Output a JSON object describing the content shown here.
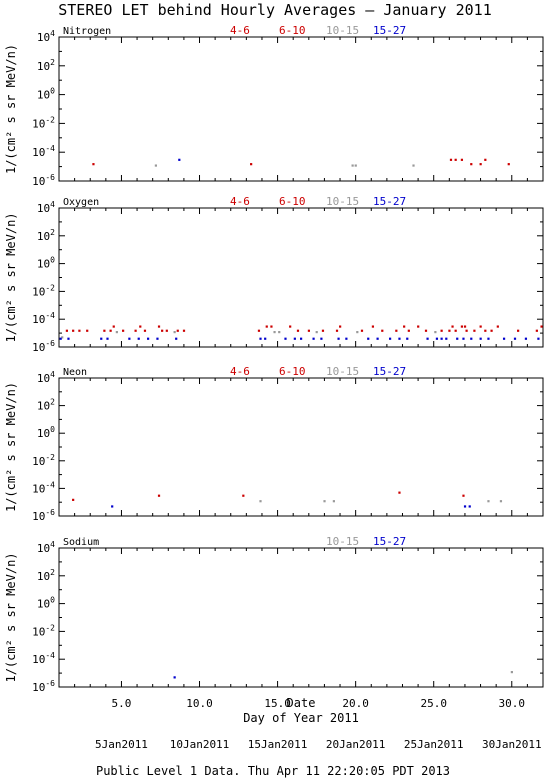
{
  "title": "STEREO LET behind Hourly Averages – January 2011",
  "footer": "Public Level 1 Data. Thu Apr 11 22:20:05 PDT 2013",
  "legend_colors": {
    "4-6": "#cc0000",
    "6-10": "#cc0000",
    "10-15": "#999999",
    "15-27": "#0000cc"
  },
  "chart_data": [
    {
      "type": "scatter",
      "label": "Nitrogen",
      "ylabel": "1/(cm² s sr MeV/n)",
      "xlim": [
        1,
        32
      ],
      "ylog": true,
      "ylim": [
        1e-06,
        10000.0
      ],
      "legend": [
        "4-6",
        "6-10",
        "10-15",
        "15-27"
      ],
      "series": [
        {
          "name": "4-6",
          "color": "#cc0000",
          "points": [
            [
              3.2,
              1.5e-05
            ],
            [
              13.3,
              1.5e-05
            ],
            [
              26.8,
              3e-05
            ],
            [
              27.4,
              1.5e-05
            ],
            [
              28.0,
              1.5e-05
            ],
            [
              29.8,
              1.5e-05
            ]
          ]
        },
        {
          "name": "6-10",
          "color": "#cc0000",
          "points": [
            [
              26.1,
              3e-05
            ],
            [
              26.4,
              3e-05
            ],
            [
              28.3,
              3e-05
            ]
          ]
        },
        {
          "name": "10-15",
          "color": "#999999",
          "points": [
            [
              7.2,
              1.2e-05
            ],
            [
              19.8,
              1.2e-05
            ],
            [
              20.0,
              1.2e-05
            ],
            [
              23.7,
              1.2e-05
            ]
          ]
        },
        {
          "name": "15-27",
          "color": "#0000cc",
          "points": [
            [
              8.7,
              3e-05
            ]
          ]
        }
      ]
    },
    {
      "type": "scatter",
      "label": "Oxygen",
      "ylabel": "1/(cm² s sr MeV/n)",
      "xlim": [
        1,
        32
      ],
      "ylog": true,
      "ylim": [
        1e-06,
        10000.0
      ],
      "legend": [
        "4-6",
        "6-10",
        "10-15",
        "15-27"
      ],
      "series": [
        {
          "name": "4-6",
          "color": "#cc0000",
          "points": [
            [
              1.5,
              1.5e-05
            ],
            [
              1.9,
              1.5e-05
            ],
            [
              2.3,
              1.5e-05
            ],
            [
              2.8,
              1.5e-05
            ],
            [
              3.9,
              1.5e-05
            ],
            [
              4.3,
              1.5e-05
            ],
            [
              5.1,
              1.5e-05
            ],
            [
              5.9,
              1.5e-05
            ],
            [
              6.5,
              1.5e-05
            ],
            [
              7.6,
              1.5e-05
            ],
            [
              7.9,
              1.5e-05
            ],
            [
              8.6,
              1.5e-05
            ],
            [
              9.0,
              1.5e-05
            ],
            [
              13.8,
              1.5e-05
            ],
            [
              16.3,
              1.5e-05
            ],
            [
              17.0,
              1.5e-05
            ],
            [
              17.9,
              1.5e-05
            ],
            [
              18.8,
              1.5e-05
            ],
            [
              20.4,
              1.5e-05
            ],
            [
              21.7,
              1.5e-05
            ],
            [
              22.6,
              1.5e-05
            ],
            [
              23.4,
              1.5e-05
            ],
            [
              24.5,
              1.5e-05
            ],
            [
              25.5,
              1.5e-05
            ],
            [
              26.0,
              1.5e-05
            ],
            [
              26.4,
              1.5e-05
            ],
            [
              27.1,
              1.5e-05
            ],
            [
              27.6,
              1.5e-05
            ],
            [
              28.3,
              1.5e-05
            ],
            [
              28.7,
              1.5e-05
            ],
            [
              30.4,
              1.5e-05
            ],
            [
              31.6,
              1.5e-05
            ]
          ]
        },
        {
          "name": "6-10",
          "color": "#cc0000",
          "points": [
            [
              4.5,
              3e-05
            ],
            [
              6.2,
              3e-05
            ],
            [
              7.4,
              3e-05
            ],
            [
              14.3,
              3e-05
            ],
            [
              14.6,
              3e-05
            ],
            [
              15.8,
              3e-05
            ],
            [
              19.0,
              3e-05
            ],
            [
              21.1,
              3e-05
            ],
            [
              23.1,
              3e-05
            ],
            [
              24.0,
              3e-05
            ],
            [
              26.2,
              3e-05
            ],
            [
              26.8,
              3e-05
            ],
            [
              27.0,
              3e-05
            ],
            [
              28.0,
              3e-05
            ],
            [
              29.1,
              3e-05
            ],
            [
              31.9,
              3e-05
            ]
          ]
        },
        {
          "name": "10-15",
          "color": "#999999",
          "points": [
            [
              1.2,
              5e-06
            ],
            [
              4.7,
              1.2e-05
            ],
            [
              8.4,
              1.2e-05
            ],
            [
              14.8,
              1.2e-05
            ],
            [
              15.1,
              1.2e-05
            ],
            [
              17.5,
              1.2e-05
            ],
            [
              20.1,
              1.2e-05
            ],
            [
              25.1,
              1.2e-05
            ]
          ]
        },
        {
          "name": "15-27",
          "color": "#0000cc",
          "points": [
            [
              1.1,
              4e-06
            ],
            [
              1.6,
              4e-06
            ],
            [
              3.7,
              4e-06
            ],
            [
              4.1,
              4e-06
            ],
            [
              5.5,
              4e-06
            ],
            [
              6.1,
              4e-06
            ],
            [
              6.7,
              4e-06
            ],
            [
              7.3,
              4e-06
            ],
            [
              8.5,
              4e-06
            ],
            [
              13.9,
              4e-06
            ],
            [
              14.2,
              4e-06
            ],
            [
              15.5,
              4e-06
            ],
            [
              16.1,
              4e-06
            ],
            [
              16.5,
              4e-06
            ],
            [
              17.3,
              4e-06
            ],
            [
              17.8,
              4e-06
            ],
            [
              18.9,
              4e-06
            ],
            [
              19.4,
              4e-06
            ],
            [
              20.8,
              4e-06
            ],
            [
              21.4,
              4e-06
            ],
            [
              22.2,
              4e-06
            ],
            [
              22.8,
              4e-06
            ],
            [
              23.3,
              4e-06
            ],
            [
              24.6,
              4e-06
            ],
            [
              25.2,
              4e-06
            ],
            [
              25.5,
              4e-06
            ],
            [
              25.8,
              4e-06
            ],
            [
              26.5,
              4e-06
            ],
            [
              26.9,
              4e-06
            ],
            [
              27.4,
              4e-06
            ],
            [
              28.0,
              4e-06
            ],
            [
              28.5,
              4e-06
            ],
            [
              29.5,
              4e-06
            ],
            [
              30.2,
              4e-06
            ],
            [
              30.9,
              4e-06
            ],
            [
              31.7,
              4e-06
            ]
          ]
        }
      ]
    },
    {
      "type": "scatter",
      "label": "Neon",
      "ylabel": "1/(cm² s sr MeV/n)",
      "xlim": [
        1,
        32
      ],
      "ylog": true,
      "ylim": [
        1e-06,
        10000.0
      ],
      "legend": [
        "4-6",
        "6-10",
        "10-15",
        "15-27"
      ],
      "series": [
        {
          "name": "4-6",
          "color": "#cc0000",
          "points": [
            [
              1.9,
              1.5e-05
            ],
            [
              7.4,
              3e-05
            ],
            [
              12.8,
              3e-05
            ],
            [
              26.9,
              3e-05
            ]
          ]
        },
        {
          "name": "6-10",
          "color": "#cc0000",
          "points": [
            [
              22.8,
              5e-05
            ]
          ]
        },
        {
          "name": "10-15",
          "color": "#999999",
          "points": [
            [
              13.9,
              1.2e-05
            ],
            [
              18.0,
              1.2e-05
            ],
            [
              18.6,
              1.2e-05
            ],
            [
              28.5,
              1.2e-05
            ],
            [
              29.3,
              1.2e-05
            ]
          ]
        },
        {
          "name": "15-27",
          "color": "#0000cc",
          "points": [
            [
              4.4,
              5e-06
            ],
            [
              27.0,
              5e-06
            ],
            [
              27.3,
              5e-06
            ]
          ]
        }
      ]
    },
    {
      "type": "scatter",
      "label": "Sodium",
      "ylabel": "1/(cm² s sr MeV/n)",
      "xlim": [
        1,
        32
      ],
      "ylog": true,
      "ylim": [
        1e-06,
        10000.0
      ],
      "legend": [
        "10-15",
        "15-27"
      ],
      "series": [
        {
          "name": "10-15",
          "color": "#999999",
          "points": [
            [
              30.0,
              1.2e-05
            ]
          ]
        },
        {
          "name": "15-27",
          "color": "#0000cc",
          "points": [
            [
              8.4,
              5e-06
            ]
          ]
        }
      ]
    }
  ],
  "x_axis": {
    "xlabel": "Day of Year 2011",
    "ticks": [
      5,
      10,
      15,
      20,
      25,
      30
    ],
    "tick_labels": [
      "5.0",
      "10.0",
      "15.0",
      "20.0",
      "25.0",
      "30.0"
    ],
    "date_title": "Date",
    "date_ticks": [
      5,
      10,
      15,
      20,
      25,
      30
    ],
    "date_labels": [
      "5Jan2011",
      "10Jan2011",
      "15Jan2011",
      "20Jan2011",
      "25Jan2011",
      "30Jan2011"
    ]
  },
  "y_axis": {
    "ticks": [
      4,
      2,
      0,
      -2,
      -4,
      -6
    ],
    "tick_labels": [
      "4",
      "2",
      "0",
      "-2",
      "-4",
      "-6"
    ]
  }
}
